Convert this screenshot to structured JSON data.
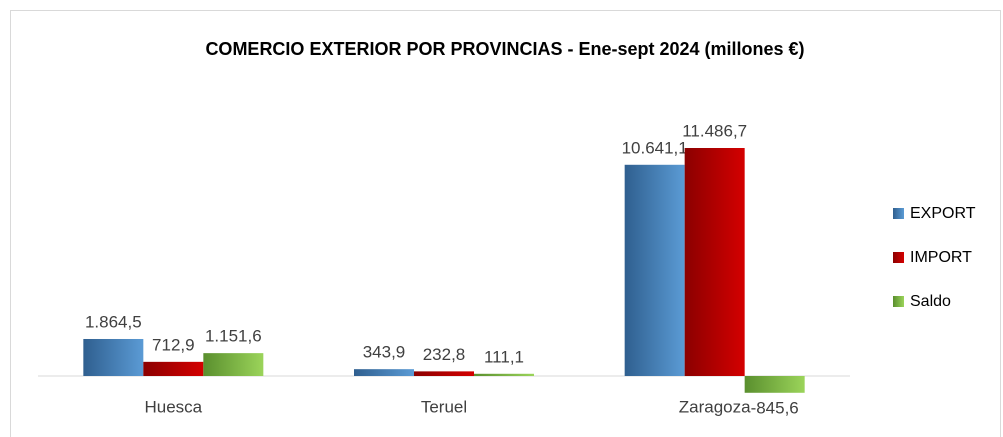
{
  "chart_data": {
    "type": "bar",
    "title": "COMERCIO EXTERIOR POR PROVINCIAS  - Ene-sept 2024 (millones €)",
    "categories": [
      "Huesca",
      "Teruel",
      "Zaragoza"
    ],
    "series": [
      {
        "name": "EXPORT",
        "color": "#4f81bd",
        "values": [
          1864.5,
          343.9,
          10641.1
        ],
        "value_labels": [
          "1.864,5",
          "343,9",
          "10.641,1"
        ]
      },
      {
        "name": "IMPORT",
        "color": "#c00000",
        "values": [
          712.9,
          232.8,
          11486.7
        ],
        "value_labels": [
          "712,9",
          "232,8",
          "11.486,7"
        ]
      },
      {
        "name": "Saldo",
        "color": "#7ab648",
        "values": [
          1151.6,
          111.1,
          -845.6
        ],
        "value_labels": [
          "1.151,6",
          "111,1",
          "-845,6"
        ]
      }
    ],
    "legend": "right"
  }
}
